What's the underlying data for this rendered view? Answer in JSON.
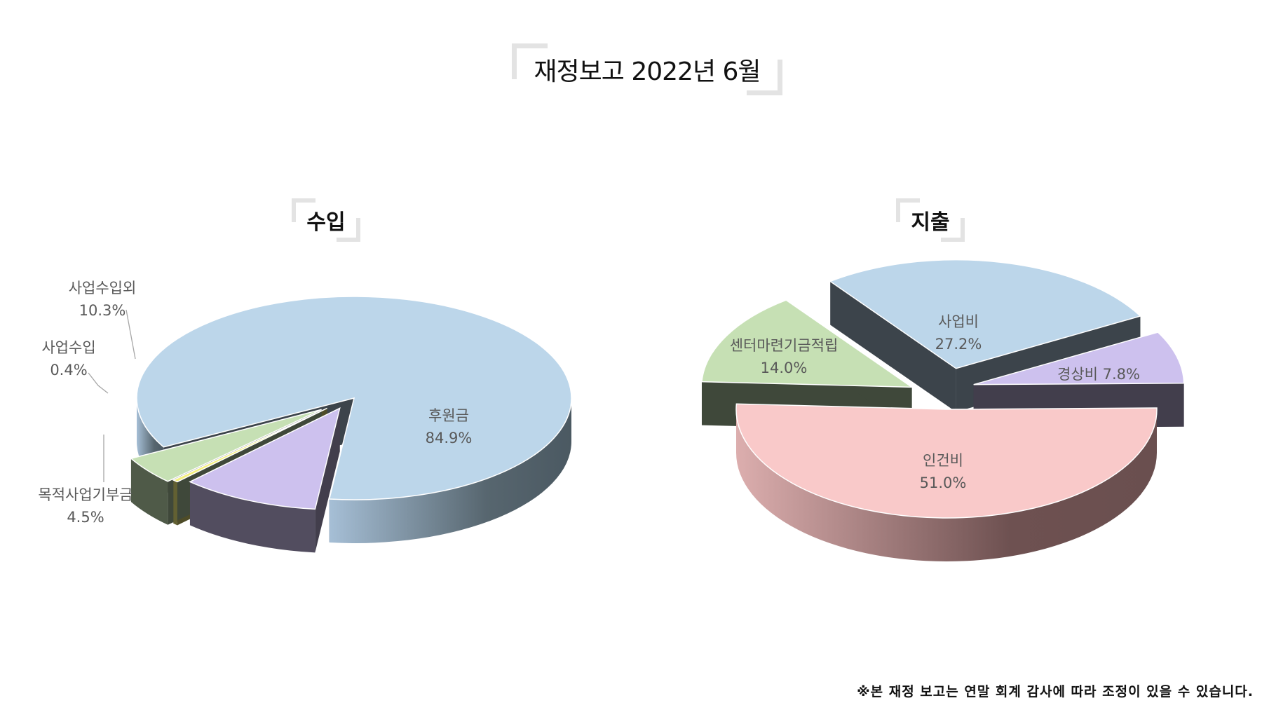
{
  "title": "재정보고 2022년 6월",
  "footnote": "※본 재정 보고는 연말 회계 감사에 따라 조정이 있을 수 있습니다.",
  "chart_data": [
    {
      "type": "pie",
      "title": "수입",
      "style": "3d-exploded",
      "slices": [
        {
          "label": "후원금",
          "value": 84.9,
          "display": "84.9%",
          "color": "#bcd6ea"
        },
        {
          "label": "사업수입외",
          "value": 10.3,
          "display": "10.3%",
          "color": "#cdc1ee"
        },
        {
          "label": "사업수입",
          "value": 0.4,
          "display": "0.4%",
          "color": "#f4ef7e"
        },
        {
          "label": "목적사업기부금",
          "value": 4.5,
          "display": "4.5%",
          "color": "#c6e0b4"
        }
      ]
    },
    {
      "type": "pie",
      "title": "지출",
      "style": "3d-exploded",
      "slices": [
        {
          "label": "인건비",
          "value": 51.0,
          "display": "51.0%",
          "color": "#f9c9c9"
        },
        {
          "label": "센터마련기금적립",
          "value": 14.0,
          "display": "14.0%",
          "color": "#c6e0b4"
        },
        {
          "label": "사업비",
          "value": 27.2,
          "display": "27.2%",
          "color": "#bcd6ea"
        },
        {
          "label": "경상비",
          "value": 7.8,
          "display": "7.8%",
          "color": "#cdc1ee"
        }
      ]
    }
  ]
}
